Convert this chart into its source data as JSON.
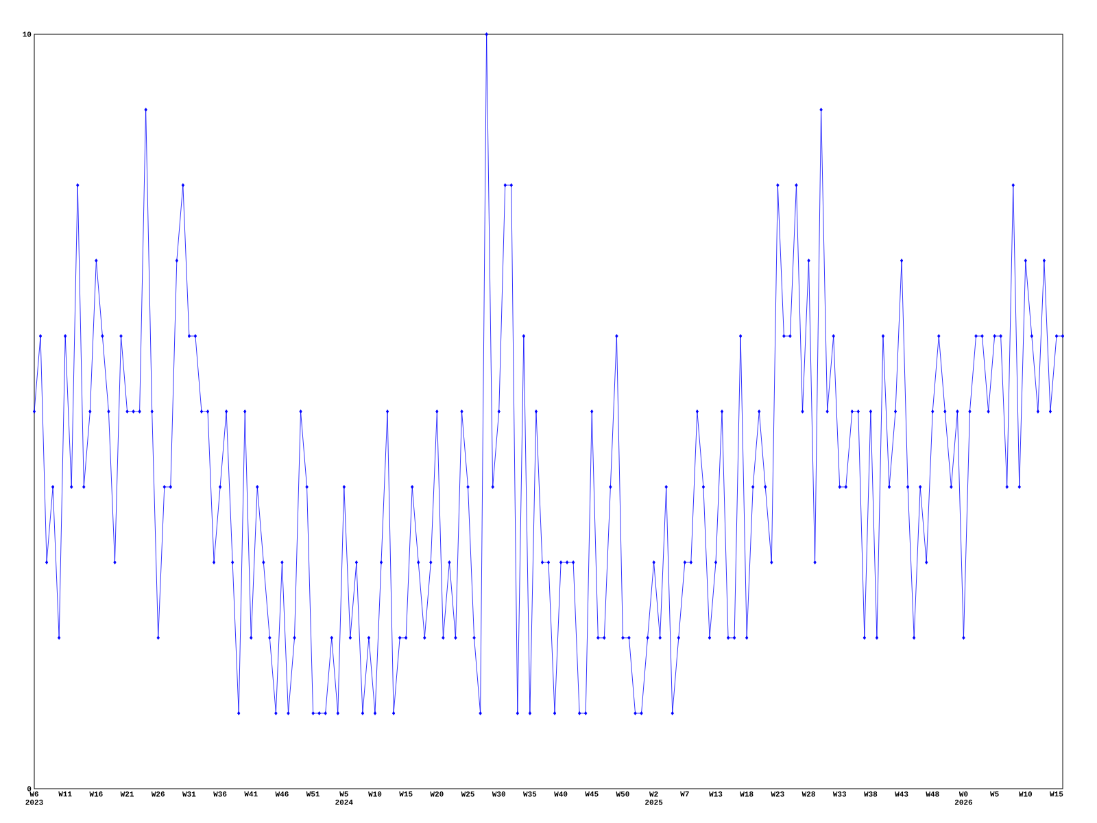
{
  "chart_data": {
    "type": "line",
    "categories": [
      "W6 2023",
      null,
      null,
      null,
      null,
      "W11",
      null,
      null,
      null,
      null,
      "W16",
      null,
      null,
      null,
      null,
      "W21",
      null,
      null,
      null,
      null,
      "W26",
      null,
      null,
      null,
      null,
      "W31",
      null,
      null,
      null,
      null,
      "W36",
      null,
      null,
      null,
      null,
      "W41",
      null,
      null,
      null,
      null,
      "W46",
      null,
      null,
      null,
      null,
      "W51",
      null,
      null,
      null,
      null,
      "W5 2024",
      null,
      null,
      null,
      null,
      "W10",
      null,
      null,
      null,
      null,
      "W15",
      null,
      null,
      null,
      null,
      "W20",
      null,
      null,
      null,
      null,
      "W25",
      null,
      null,
      null,
      null,
      "W30",
      null,
      null,
      null,
      null,
      "W35",
      null,
      null,
      null,
      null,
      "W40",
      null,
      null,
      null,
      null,
      "W45",
      null,
      null,
      null,
      null,
      "W50",
      null,
      null,
      null,
      null,
      "W2 2025",
      null,
      null,
      null,
      null,
      "W7",
      null,
      null,
      null,
      null,
      "W13",
      null,
      null,
      null,
      null,
      "W18",
      null,
      null,
      null,
      null,
      "W23",
      null,
      null,
      null,
      null,
      "W28",
      null,
      null,
      null,
      null,
      "W33",
      null,
      null,
      null,
      null,
      "W38",
      null,
      null,
      null,
      null,
      "W43",
      null,
      null,
      null,
      null,
      "W48",
      null,
      null,
      null,
      null,
      "W0 2026",
      null,
      null,
      null,
      null,
      "W5",
      null,
      null,
      null,
      null,
      "W10",
      null,
      null,
      null,
      null,
      "W15",
      null
    ],
    "values": [
      5,
      6,
      3,
      4,
      2,
      6,
      4,
      8,
      4,
      5,
      7,
      6,
      5,
      3,
      6,
      5,
      5,
      5,
      9,
      5,
      2,
      4,
      4,
      7,
      8,
      6,
      6,
      5,
      5,
      3,
      4,
      5,
      3,
      1,
      5,
      2,
      4,
      3,
      2,
      1,
      3,
      1,
      2,
      5,
      4,
      1,
      1,
      1,
      2,
      1,
      4,
      2,
      3,
      1,
      2,
      1,
      3,
      5,
      1,
      2,
      2,
      4,
      3,
      2,
      3,
      5,
      2,
      3,
      2,
      5,
      4,
      2,
      1,
      10,
      4,
      5,
      8,
      8,
      1,
      6,
      1,
      5,
      3,
      3,
      1,
      3,
      3,
      3,
      1,
      1,
      5,
      2,
      2,
      4,
      6,
      2,
      2,
      1,
      1,
      2,
      3,
      2,
      4,
      1,
      2,
      3,
      3,
      5,
      4,
      2,
      3,
      5,
      2,
      2,
      6,
      2,
      4,
      5,
      4,
      3,
      8,
      6,
      6,
      8,
      5,
      7,
      3,
      9,
      5,
      6,
      4,
      4,
      5,
      5,
      2,
      5,
      2,
      6,
      4,
      5,
      7,
      4,
      2,
      4,
      3,
      5,
      6,
      5,
      4,
      5,
      2,
      5,
      6,
      6,
      5,
      6,
      6,
      4,
      8,
      4,
      7,
      6,
      5,
      7,
      5,
      6,
      6
    ],
    "color": "#0000ff",
    "marker": "diamond",
    "line_style": "solid",
    "ylim": [
      0,
      10
    ],
    "yticks": [
      0,
      10
    ],
    "grid": false
  }
}
